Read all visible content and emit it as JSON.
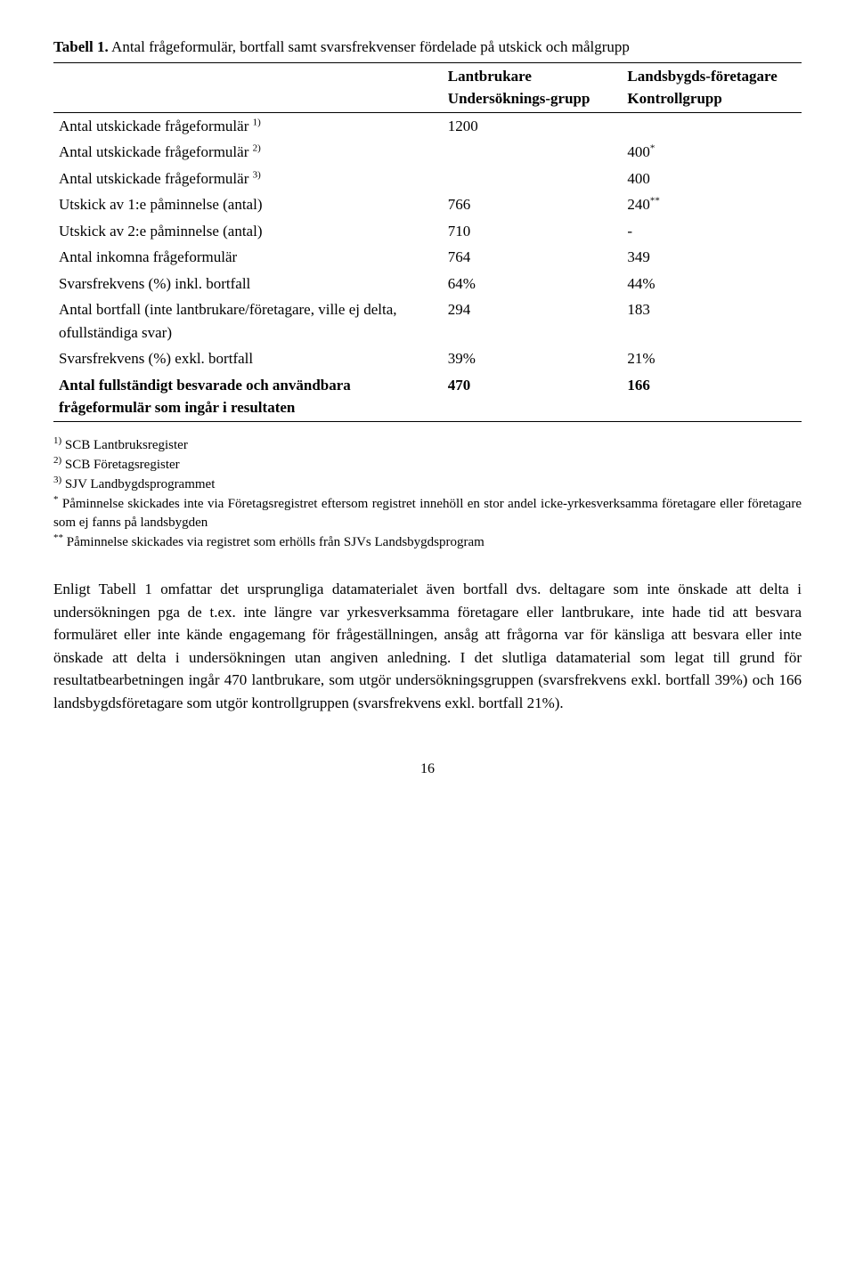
{
  "table": {
    "caption_label": "Tabell 1.",
    "caption_text": " Antal frågeformulär, bortfall samt svarsfrekvenser fördelade på utskick och målgrupp",
    "head_col1": "",
    "head_col2": "Lantbrukare Undersöknings-grupp",
    "head_col3": "Landsbygds-företagare Kontrollgrupp",
    "rows": [
      {
        "label": "Antal utskickade frågeformulär ",
        "sup": "1)",
        "c2": "1200",
        "c3": ""
      },
      {
        "label": "Antal utskickade frågeformulär ",
        "sup": "2)",
        "c2": "",
        "c3": "400",
        "c3sup": "*"
      },
      {
        "label": "Antal utskickade frågeformulär ",
        "sup": "3)",
        "c2": "",
        "c3": "400"
      },
      {
        "label": "Utskick av 1:e påminnelse (antal)",
        "c2": "766",
        "c3": "240",
        "c3sup": "**"
      },
      {
        "label": "Utskick av 2:e påminnelse (antal)",
        "c2": "710",
        "c3": "-"
      },
      {
        "label": "Antal inkomna frågeformulär",
        "c2": "764",
        "c3": "349"
      },
      {
        "label": "Svarsfrekvens (%) inkl. bortfall",
        "c2": "64%",
        "c3": "44%"
      },
      {
        "label": "Antal bortfall (inte lantbrukare/företagare, ville ej delta, ofullständiga svar)",
        "c2": "294",
        "c3": "183"
      },
      {
        "label": "Svarsfrekvens (%) exkl. bortfall",
        "c2": "39%",
        "c3": "21%"
      },
      {
        "label": "Antal fullständigt besvarade och användbara frågeformulär som ingår i resultaten",
        "c2": "470",
        "c3": "166",
        "bold": true
      }
    ]
  },
  "footnotes": {
    "f1_sup": "1)",
    "f1": " SCB Lantbruksregister",
    "f2_sup": "2)",
    "f2": " SCB Företagsregister",
    "f3_sup": "3)",
    "f3": " SJV Landbygdsprogrammet",
    "f4_sup": "*",
    "f4": " Påminnelse skickades inte via Företagsregistret eftersom registret innehöll en stor andel icke-yrkesverksamma företagare eller företagare som ej fanns på landsbygden",
    "f5_sup": "**",
    "f5": " Påminnelse skickades via registret som erhölls från SJVs Landsbygdsprogram"
  },
  "paragraph": "Enligt Tabell 1 omfattar det ursprungliga datamaterialet även bortfall dvs. deltagare som inte önskade att delta i undersökningen pga de t.ex. inte längre var yrkesverksamma företagare eller lantbrukare, inte hade tid att besvara formuläret eller inte kände engagemang för frågeställningen, ansåg att frågorna var för känsliga att besvara eller inte önskade att delta i undersökningen utan angiven anledning. I det slutliga datamaterial som legat till grund för resultatbearbetningen ingår 470 lantbrukare, som utgör undersökningsgruppen (svarsfrekvens exkl. bortfall 39%) och 166 landsbygdsföretagare som utgör kontrollgruppen (svarsfrekvens exkl. bortfall 21%).",
  "page_number": "16"
}
